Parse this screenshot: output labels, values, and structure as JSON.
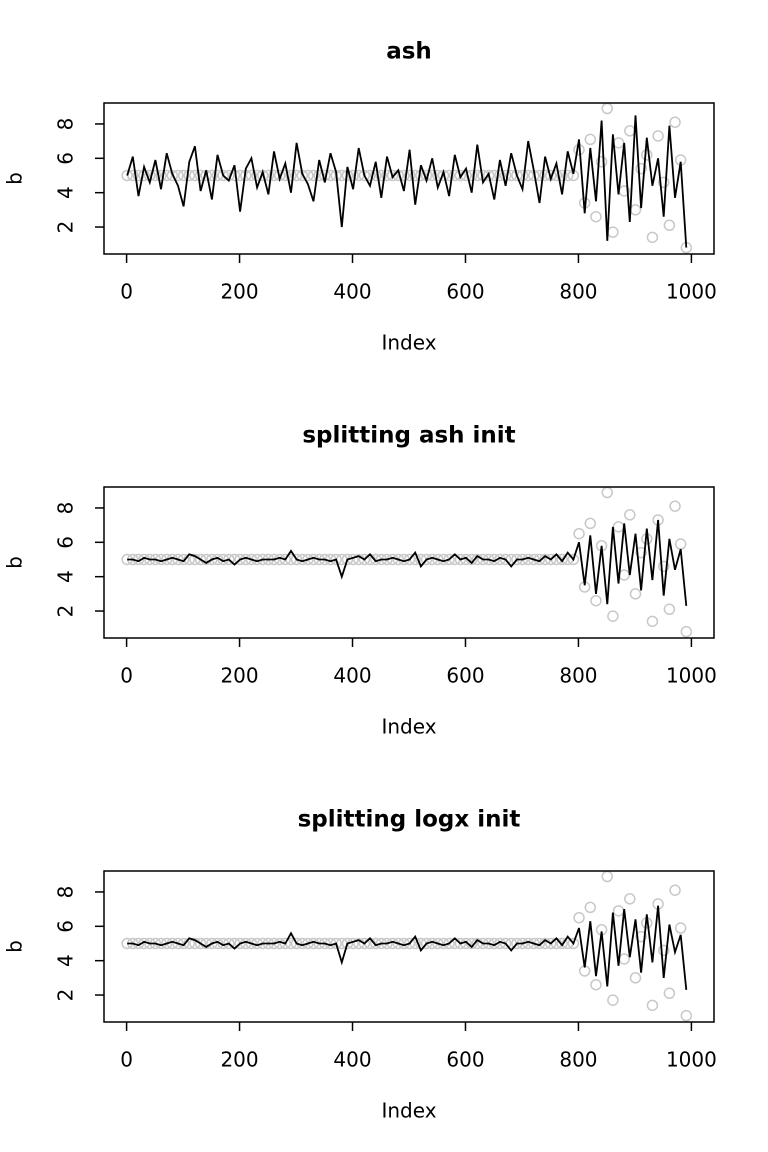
{
  "chart_data": [
    {
      "type": "scatter-line",
      "title": "ash",
      "x_label": "Index",
      "y_label": "b",
      "xlim": [
        -40,
        1040
      ],
      "ylim": [
        0.43,
        9.22
      ],
      "xticks": [
        0,
        200,
        400,
        600,
        800,
        1000
      ],
      "yticks": [
        2,
        4,
        6,
        8
      ],
      "x": [
        1,
        11,
        21,
        31,
        41,
        51,
        61,
        71,
        81,
        91,
        101,
        111,
        121,
        131,
        141,
        151,
        161,
        171,
        181,
        191,
        201,
        211,
        221,
        231,
        241,
        251,
        261,
        271,
        281,
        291,
        301,
        311,
        321,
        331,
        341,
        351,
        361,
        371,
        381,
        391,
        401,
        411,
        421,
        431,
        441,
        451,
        461,
        471,
        481,
        491,
        501,
        511,
        521,
        531,
        541,
        551,
        561,
        571,
        581,
        591,
        601,
        611,
        621,
        631,
        641,
        651,
        661,
        671,
        681,
        691,
        701,
        711,
        721,
        731,
        741,
        751,
        761,
        771,
        781,
        791,
        801,
        811,
        821,
        831,
        841,
        851,
        861,
        871,
        881,
        891,
        901,
        911,
        921,
        931,
        941,
        951,
        961,
        971,
        981,
        991
      ],
      "series": [
        {
          "kind": "points",
          "color": "#c8c8c8",
          "values": [
            5,
            5,
            5,
            5,
            5,
            5,
            5,
            5,
            5,
            5,
            5,
            5,
            5,
            5,
            5,
            5,
            5,
            5,
            5,
            5,
            5,
            5,
            5,
            5,
            5,
            5,
            5,
            5,
            5,
            5,
            5,
            5,
            5,
            5,
            5,
            5,
            5,
            5,
            5,
            5,
            5,
            5,
            5,
            5,
            5,
            5,
            5,
            5,
            5,
            5,
            5,
            5,
            5,
            5,
            5,
            5,
            5,
            5,
            5,
            5,
            5,
            5,
            5,
            5,
            5,
            5,
            5,
            5,
            5,
            5,
            5,
            5,
            5,
            5,
            5,
            5,
            5,
            5,
            5,
            5,
            6.5,
            3.4,
            7.1,
            2.6,
            5.8,
            8.9,
            1.7,
            6.9,
            4.1,
            7.6,
            3.0,
            5.4,
            6.2,
            1.4,
            7.3,
            4.6,
            2.1,
            8.1,
            5.9,
            0.8
          ]
        },
        {
          "kind": "line",
          "color": "#000000",
          "values": [
            5.0,
            6.1,
            3.8,
            5.5,
            4.6,
            5.9,
            4.2,
            6.3,
            5.1,
            4.4,
            3.2,
            5.8,
            6.7,
            4.1,
            5.3,
            3.6,
            6.2,
            5.0,
            4.7,
            5.6,
            2.9,
            5.4,
            6.0,
            4.3,
            5.2,
            3.9,
            6.4,
            4.8,
            5.7,
            4.0,
            6.9,
            5.1,
            4.5,
            3.5,
            5.9,
            4.6,
            6.3,
            5.2,
            2.0,
            5.5,
            4.2,
            6.6,
            5.0,
            4.4,
            5.8,
            3.7,
            6.1,
            4.9,
            5.3,
            4.1,
            6.5,
            3.3,
            5.6,
            4.7,
            6.0,
            4.3,
            5.2,
            3.8,
            6.2,
            4.9,
            5.4,
            4.0,
            6.8,
            4.6,
            5.1,
            3.6,
            5.9,
            4.4,
            6.3,
            5.0,
            4.2,
            7.0,
            5.3,
            3.4,
            6.1,
            4.8,
            5.7,
            3.9,
            6.4,
            5.1,
            7.1,
            2.8,
            6.6,
            3.5,
            8.2,
            1.2,
            7.4,
            3.9,
            6.9,
            2.3,
            8.5,
            3.1,
            7.2,
            4.4,
            6.0,
            2.6,
            7.9,
            3.7,
            5.8,
            0.8
          ]
        }
      ]
    },
    {
      "type": "scatter-line",
      "title": "splitting ash init",
      "x_label": "Index",
      "y_label": "b",
      "xlim": [
        -40,
        1040
      ],
      "ylim": [
        0.43,
        9.22
      ],
      "xticks": [
        0,
        200,
        400,
        600,
        800,
        1000
      ],
      "yticks": [
        2,
        4,
        6,
        8
      ],
      "x": [
        1,
        11,
        21,
        31,
        41,
        51,
        61,
        71,
        81,
        91,
        101,
        111,
        121,
        131,
        141,
        151,
        161,
        171,
        181,
        191,
        201,
        211,
        221,
        231,
        241,
        251,
        261,
        271,
        281,
        291,
        301,
        311,
        321,
        331,
        341,
        351,
        361,
        371,
        381,
        391,
        401,
        411,
        421,
        431,
        441,
        451,
        461,
        471,
        481,
        491,
        501,
        511,
        521,
        531,
        541,
        551,
        561,
        571,
        581,
        591,
        601,
        611,
        621,
        631,
        641,
        651,
        661,
        671,
        681,
        691,
        701,
        711,
        721,
        731,
        741,
        751,
        761,
        771,
        781,
        791,
        801,
        811,
        821,
        831,
        841,
        851,
        861,
        871,
        881,
        891,
        901,
        911,
        921,
        931,
        941,
        951,
        961,
        971,
        981,
        991
      ],
      "series": [
        {
          "kind": "points",
          "color": "#c8c8c8",
          "values": [
            5,
            5,
            5,
            5,
            5,
            5,
            5,
            5,
            5,
            5,
            5,
            5,
            5,
            5,
            5,
            5,
            5,
            5,
            5,
            5,
            5,
            5,
            5,
            5,
            5,
            5,
            5,
            5,
            5,
            5,
            5,
            5,
            5,
            5,
            5,
            5,
            5,
            5,
            5,
            5,
            5,
            5,
            5,
            5,
            5,
            5,
            5,
            5,
            5,
            5,
            5,
            5,
            5,
            5,
            5,
            5,
            5,
            5,
            5,
            5,
            5,
            5,
            5,
            5,
            5,
            5,
            5,
            5,
            5,
            5,
            5,
            5,
            5,
            5,
            5,
            5,
            5,
            5,
            5,
            5,
            6.5,
            3.4,
            7.1,
            2.6,
            5.8,
            8.9,
            1.7,
            6.9,
            4.1,
            7.6,
            3.0,
            5.4,
            6.2,
            1.4,
            7.3,
            4.6,
            2.1,
            8.1,
            5.9,
            0.8
          ]
        },
        {
          "kind": "line",
          "color": "#000000",
          "values": [
            5.0,
            5.0,
            4.9,
            5.1,
            5.0,
            5.0,
            4.9,
            5.0,
            5.1,
            5.0,
            4.9,
            5.3,
            5.2,
            5.0,
            4.8,
            5.0,
            5.1,
            4.9,
            5.0,
            4.7,
            5.0,
            5.1,
            5.0,
            4.9,
            5.0,
            5.0,
            5.0,
            5.1,
            5.0,
            5.5,
            5.0,
            4.9,
            5.0,
            5.1,
            5.0,
            5.0,
            4.9,
            5.0,
            4.0,
            5.0,
            5.1,
            5.2,
            5.0,
            5.3,
            4.9,
            5.0,
            5.0,
            5.1,
            5.0,
            4.9,
            5.0,
            5.4,
            4.6,
            5.0,
            5.1,
            5.0,
            4.9,
            5.0,
            5.3,
            5.0,
            5.1,
            4.8,
            5.2,
            5.0,
            5.0,
            4.9,
            5.1,
            5.0,
            4.6,
            5.0,
            5.0,
            5.1,
            5.0,
            4.9,
            5.2,
            5.0,
            5.3,
            4.9,
            5.4,
            5.0,
            6.0,
            3.5,
            6.4,
            3.0,
            5.8,
            2.4,
            6.9,
            3.6,
            7.1,
            4.1,
            6.5,
            3.2,
            6.8,
            3.8,
            7.3,
            2.9,
            6.2,
            4.4,
            5.6,
            2.3
          ]
        }
      ]
    },
    {
      "type": "scatter-line",
      "title": "splitting logx init",
      "x_label": "Index",
      "y_label": "b",
      "xlim": [
        -40,
        1040
      ],
      "ylim": [
        0.43,
        9.22
      ],
      "xticks": [
        0,
        200,
        400,
        600,
        800,
        1000
      ],
      "yticks": [
        2,
        4,
        6,
        8
      ],
      "x": [
        1,
        11,
        21,
        31,
        41,
        51,
        61,
        71,
        81,
        91,
        101,
        111,
        121,
        131,
        141,
        151,
        161,
        171,
        181,
        191,
        201,
        211,
        221,
        231,
        241,
        251,
        261,
        271,
        281,
        291,
        301,
        311,
        321,
        331,
        341,
        351,
        361,
        371,
        381,
        391,
        401,
        411,
        421,
        431,
        441,
        451,
        461,
        471,
        481,
        491,
        501,
        511,
        521,
        531,
        541,
        551,
        561,
        571,
        581,
        591,
        601,
        611,
        621,
        631,
        641,
        651,
        661,
        671,
        681,
        691,
        701,
        711,
        721,
        731,
        741,
        751,
        761,
        771,
        781,
        791,
        801,
        811,
        821,
        831,
        841,
        851,
        861,
        871,
        881,
        891,
        901,
        911,
        921,
        931,
        941,
        951,
        961,
        971,
        981,
        991
      ],
      "series": [
        {
          "kind": "points",
          "color": "#c8c8c8",
          "values": [
            5,
            5,
            5,
            5,
            5,
            5,
            5,
            5,
            5,
            5,
            5,
            5,
            5,
            5,
            5,
            5,
            5,
            5,
            5,
            5,
            5,
            5,
            5,
            5,
            5,
            5,
            5,
            5,
            5,
            5,
            5,
            5,
            5,
            5,
            5,
            5,
            5,
            5,
            5,
            5,
            5,
            5,
            5,
            5,
            5,
            5,
            5,
            5,
            5,
            5,
            5,
            5,
            5,
            5,
            5,
            5,
            5,
            5,
            5,
            5,
            5,
            5,
            5,
            5,
            5,
            5,
            5,
            5,
            5,
            5,
            5,
            5,
            5,
            5,
            5,
            5,
            5,
            5,
            5,
            5,
            6.5,
            3.4,
            7.1,
            2.6,
            5.8,
            8.9,
            1.7,
            6.9,
            4.1,
            7.6,
            3.0,
            5.4,
            6.2,
            1.4,
            7.3,
            4.6,
            2.1,
            8.1,
            5.9,
            0.8
          ]
        },
        {
          "kind": "line",
          "color": "#000000",
          "values": [
            5.0,
            5.0,
            4.9,
            5.1,
            5.0,
            5.0,
            4.9,
            5.0,
            5.1,
            5.0,
            4.9,
            5.3,
            5.2,
            5.0,
            4.8,
            5.0,
            5.1,
            4.9,
            5.0,
            4.7,
            5.0,
            5.1,
            5.0,
            4.9,
            5.0,
            5.0,
            5.0,
            5.1,
            5.0,
            5.6,
            5.0,
            4.9,
            5.0,
            5.1,
            5.0,
            5.0,
            4.9,
            5.0,
            3.9,
            5.0,
            5.1,
            5.2,
            5.0,
            5.3,
            4.9,
            5.0,
            5.0,
            5.1,
            5.0,
            4.9,
            5.0,
            5.4,
            4.6,
            5.0,
            5.1,
            5.0,
            4.9,
            5.0,
            5.3,
            5.0,
            5.1,
            4.8,
            5.2,
            5.0,
            5.0,
            4.9,
            5.1,
            5.0,
            4.6,
            5.0,
            5.0,
            5.1,
            5.0,
            4.9,
            5.2,
            5.0,
            5.3,
            4.9,
            5.4,
            5.0,
            5.9,
            3.6,
            6.3,
            3.1,
            5.7,
            2.5,
            6.8,
            3.7,
            7.0,
            4.2,
            6.4,
            3.3,
            6.7,
            3.9,
            7.2,
            3.0,
            6.1,
            4.5,
            5.5,
            2.3
          ]
        }
      ]
    }
  ]
}
